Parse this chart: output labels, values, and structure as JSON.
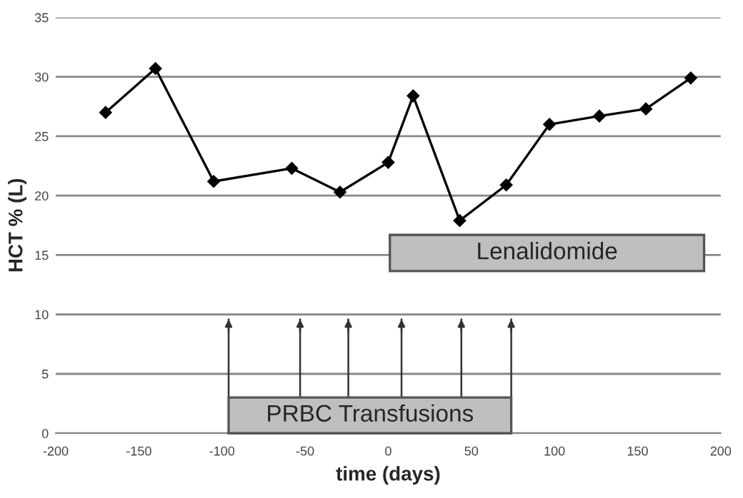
{
  "chart_data": {
    "type": "line",
    "xlabel": "time (days)",
    "ylabel": "HCT % (L)",
    "x": [
      -170,
      -140,
      -105,
      -58,
      -29,
      0,
      15,
      43,
      71,
      97,
      127,
      155,
      182
    ],
    "series": [
      {
        "color": "#000000",
        "values": [
          27.0,
          30.7,
          21.2,
          22.3,
          20.3,
          22.8,
          28.4,
          17.9,
          20.9,
          26.0,
          26.7,
          27.3,
          29.9
        ]
      }
    ],
    "xlim": [
      -200,
      200
    ],
    "xticks": [
      -200,
      -150,
      -100,
      -50,
      0,
      50,
      100,
      150,
      200
    ],
    "ylim": [
      0,
      35
    ],
    "yticks": [
      0,
      5,
      10,
      15,
      20,
      25,
      30,
      35
    ],
    "grid": "y",
    "marker": "diamond",
    "line_style": "solid",
    "legend": false,
    "bands": [
      {
        "axis": "x",
        "from": 1,
        "to": 190,
        "label": "Lenalidomide",
        "color": "#bfbfbf"
      },
      {
        "axis": "x",
        "from": -96,
        "to": 74,
        "label": "PRBC Transfusions",
        "color": "#bfbfbf"
      }
    ],
    "ref_lines": [
      {
        "axis": "x",
        "value": -96
      },
      {
        "axis": "x",
        "value": -53
      },
      {
        "axis": "x",
        "value": -24
      },
      {
        "axis": "x",
        "value": 8
      },
      {
        "axis": "x",
        "value": 44
      },
      {
        "axis": "x",
        "value": 74
      }
    ]
  }
}
